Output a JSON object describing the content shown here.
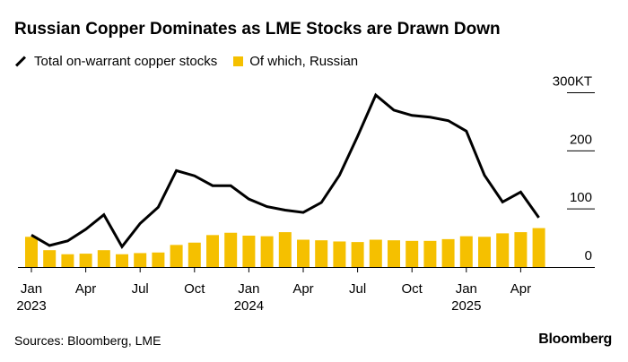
{
  "chart_data": {
    "type": "bar+line",
    "title": "Russian Copper Dominates as LME Stocks are Drawn Down",
    "categories": [
      "2023-01",
      "2023-02",
      "2023-03",
      "2023-04",
      "2023-05",
      "2023-06",
      "2023-07",
      "2023-08",
      "2023-09",
      "2023-10",
      "2023-11",
      "2023-12",
      "2024-01",
      "2024-02",
      "2024-03",
      "2024-04",
      "2024-05",
      "2024-06",
      "2024-07",
      "2024-08",
      "2024-09",
      "2024-10",
      "2024-11",
      "2024-12",
      "2025-01",
      "2025-02",
      "2025-03",
      "2025-04",
      "2025-05"
    ],
    "series": [
      {
        "name": "Total on-warrant copper stocks",
        "type": "line",
        "color": "#000000",
        "values": [
          55,
          37,
          45,
          65,
          90,
          35,
          75,
          103,
          166,
          157,
          140,
          140,
          117,
          104,
          98,
          94,
          111,
          158,
          225,
          296,
          270,
          261,
          258,
          252,
          234,
          158,
          112,
          129,
          85
        ]
      },
      {
        "name": "Of which, Russian",
        "type": "bar",
        "color": "#F5C000",
        "values": [
          52,
          29,
          22,
          23,
          29,
          22,
          24,
          25,
          38,
          42,
          55,
          59,
          54,
          53,
          60,
          47,
          46,
          44,
          43,
          47,
          46,
          45,
          45,
          48,
          53,
          52,
          58,
          60,
          67
        ]
      }
    ],
    "ylim": [
      0,
      300
    ],
    "yticks": [
      {
        "v": 0,
        "label": "0"
      },
      {
        "v": 100,
        "label": "100"
      },
      {
        "v": 200,
        "label": "200"
      },
      {
        "v": 300,
        "label": "300KT"
      }
    ],
    "xticks": [
      {
        "i": 0,
        "label": "Jan",
        "year": "2023"
      },
      {
        "i": 3,
        "label": "Apr",
        "year": ""
      },
      {
        "i": 6,
        "label": "Jul",
        "year": ""
      },
      {
        "i": 9,
        "label": "Oct",
        "year": ""
      },
      {
        "i": 12,
        "label": "Jan",
        "year": "2024"
      },
      {
        "i": 15,
        "label": "Apr",
        "year": ""
      },
      {
        "i": 18,
        "label": "Jul",
        "year": ""
      },
      {
        "i": 21,
        "label": "Oct",
        "year": ""
      },
      {
        "i": 24,
        "label": "Jan",
        "year": "2025"
      },
      {
        "i": 27,
        "label": "Apr",
        "year": ""
      }
    ],
    "grid": "right-side tick lines",
    "legend_position": "top-left"
  },
  "source": "Sources: Bloomberg, LME",
  "logo": "Bloomberg"
}
